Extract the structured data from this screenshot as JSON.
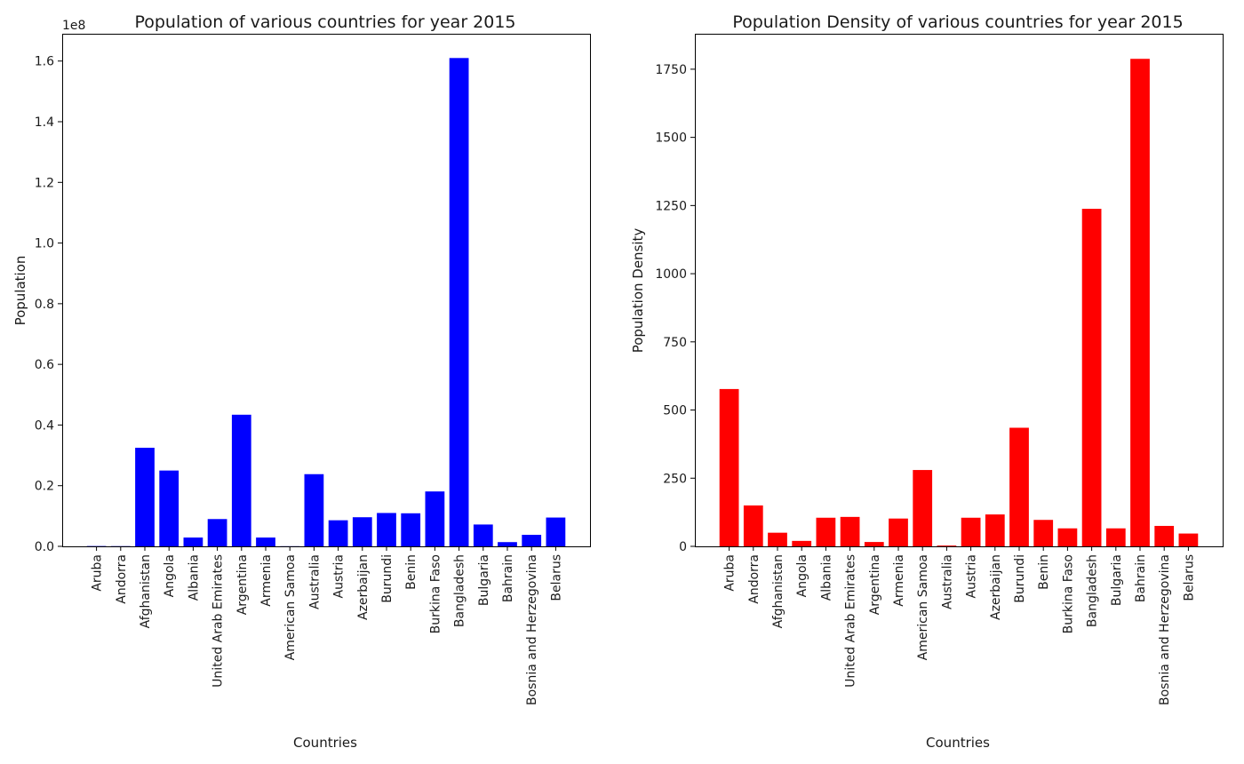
{
  "chart_data": [
    {
      "type": "bar",
      "title": "Population of various countries for year 2015",
      "xlabel": "Countries",
      "ylabel": "Population",
      "y_scale_label": "1e8",
      "y_multiplier": 100000000,
      "ylim": [
        0,
        1.69
      ],
      "yticks": [
        0.0,
        0.2,
        0.4,
        0.6,
        0.8,
        1.0,
        1.2,
        1.4,
        1.6
      ],
      "ytick_labels": [
        "0.0",
        "0.2",
        "0.4",
        "0.6",
        "0.8",
        "1.0",
        "1.2",
        "1.4",
        "1.6"
      ],
      "color": "#0000ff",
      "grid": false,
      "categories": [
        "Aruba",
        "Andorra",
        "Afghanistan",
        "Angola",
        "Albania",
        "United Arab Emirates",
        "Argentina",
        "Armenia",
        "American Samoa",
        "Australia",
        "Austria",
        "Azerbaijan",
        "Burundi",
        "Benin",
        "Burkina Faso",
        "Bangladesh",
        "Bulgaria",
        "Bahrain",
        "Bosnia and Herzegovina",
        "Belarus"
      ],
      "values": [
        104000,
        78000,
        32500000,
        25000000,
        2900000,
        9000000,
        43400000,
        2900000,
        56000,
        23800000,
        8600000,
        9600000,
        11000000,
        10900000,
        18100000,
        161000000,
        7200000,
        1400000,
        3800000,
        9500000
      ]
    },
    {
      "type": "bar",
      "title": "Population Density of various countries for year 2015",
      "xlabel": "Countries",
      "ylabel": "Population Density",
      "ylim": [
        0,
        1880
      ],
      "yticks": [
        0,
        250,
        500,
        750,
        1000,
        1250,
        1500,
        1750
      ],
      "ytick_labels": [
        "0",
        "250",
        "500",
        "750",
        "1000",
        "1250",
        "1500",
        "1750"
      ],
      "color": "#ff0000",
      "grid": false,
      "categories": [
        "Aruba",
        "Andorra",
        "Afghanistan",
        "Angola",
        "Albania",
        "United Arab Emirates",
        "Argentina",
        "Armenia",
        "American Samoa",
        "Australia",
        "Austria",
        "Azerbaijan",
        "Burundi",
        "Benin",
        "Burkina Faso",
        "Bangladesh",
        "Bulgaria",
        "Bahrain",
        "Bosnia and Herzegovina",
        "Belarus"
      ],
      "values": [
        577,
        150,
        50,
        20,
        105,
        108,
        16,
        102,
        280,
        3,
        105,
        117,
        435,
        97,
        66,
        1238,
        66,
        1788,
        75,
        47
      ]
    }
  ]
}
